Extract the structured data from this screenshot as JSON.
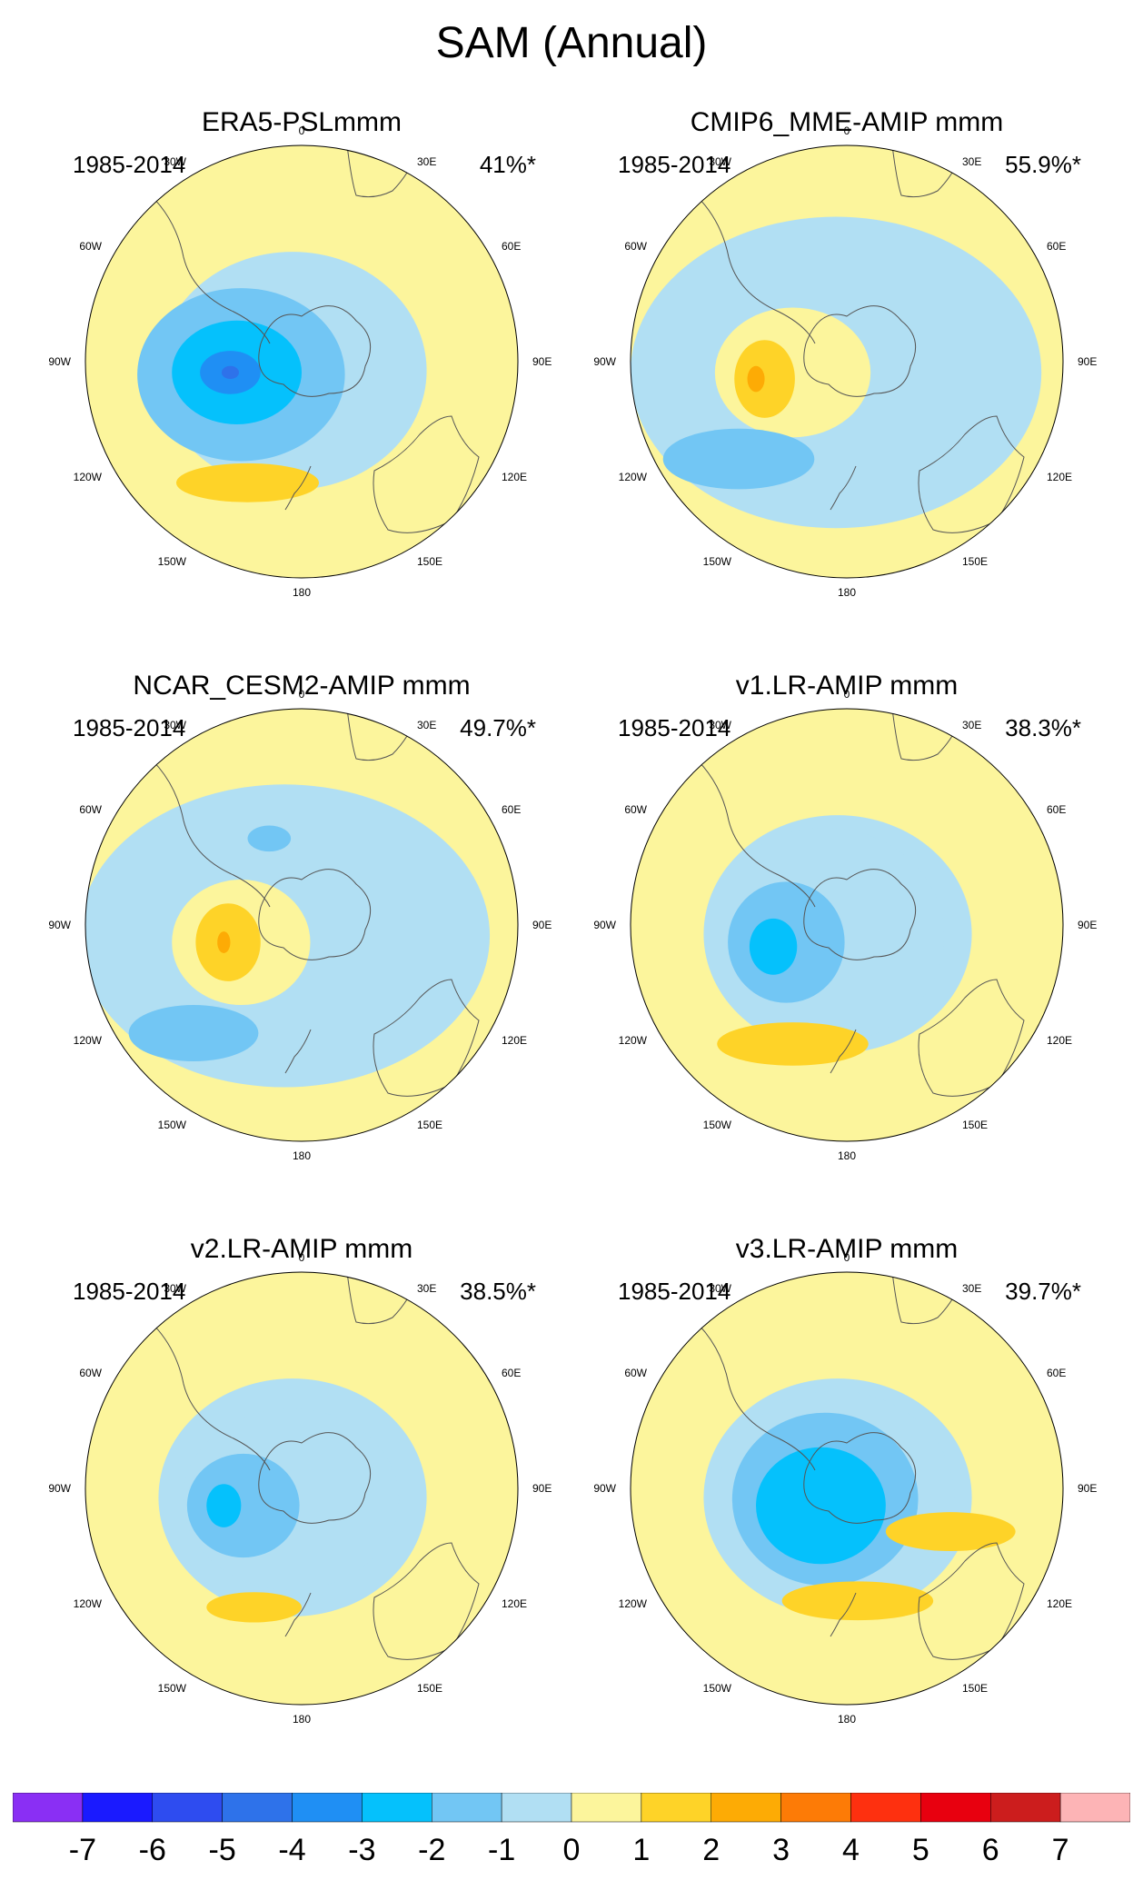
{
  "figure": {
    "title": "SAM (Annual)"
  },
  "chart_data": {
    "type": "contour-map",
    "projection": "south polar stereographic",
    "longitude_labels": [
      "0",
      "30E",
      "60E",
      "90E",
      "120E",
      "150E",
      "180",
      "150W",
      "120W",
      "90W",
      "60W",
      "30W"
    ],
    "panels": [
      {
        "title": "ERA5-PSLmmm",
        "period": "1985-2014",
        "variance_explained": "41%*",
        "features": [
          {
            "level": -2,
            "cx": -0.28,
            "cy": 0.06,
            "rx": 0.48,
            "ry": 0.4
          },
          {
            "level": -3,
            "cx": -0.3,
            "cy": 0.05,
            "rx": 0.3,
            "ry": 0.24
          },
          {
            "level": -4,
            "cx": -0.33,
            "cy": 0.05,
            "rx": 0.14,
            "ry": 0.1
          },
          {
            "level": -5,
            "cx": -0.33,
            "cy": 0.05,
            "rx": 0.04,
            "ry": 0.03
          },
          {
            "level": 2,
            "cx": -0.25,
            "cy": 0.56,
            "rx": 0.33,
            "ry": 0.09
          }
        ]
      },
      {
        "title": "CMIP6_MME-AMIP  mmm",
        "period": "1985-2014",
        "variance_explained": "55.9%*",
        "features": [
          {
            "level": -1,
            "cx": -0.05,
            "cy": 0.05,
            "rx": 0.95,
            "ry": 0.72
          },
          {
            "level": 1,
            "cx": -0.25,
            "cy": 0.05,
            "rx": 0.36,
            "ry": 0.3
          },
          {
            "level": 2,
            "cx": -0.38,
            "cy": 0.08,
            "rx": 0.14,
            "ry": 0.18
          },
          {
            "level": 3,
            "cx": -0.42,
            "cy": 0.08,
            "rx": 0.04,
            "ry": 0.06
          },
          {
            "level": -2,
            "cx": -0.5,
            "cy": 0.45,
            "rx": 0.35,
            "ry": 0.14
          }
        ]
      },
      {
        "title": "NCAR_CESM2-AMIP  mmm",
        "period": "1985-2014",
        "variance_explained": "49.7%*",
        "features": [
          {
            "level": -1,
            "cx": -0.08,
            "cy": 0.05,
            "rx": 0.95,
            "ry": 0.7
          },
          {
            "level": 1,
            "cx": -0.28,
            "cy": 0.08,
            "rx": 0.32,
            "ry": 0.29
          },
          {
            "level": 2,
            "cx": -0.34,
            "cy": 0.08,
            "rx": 0.15,
            "ry": 0.18
          },
          {
            "level": 3,
            "cx": -0.36,
            "cy": 0.08,
            "rx": 0.03,
            "ry": 0.05
          },
          {
            "level": -2,
            "cx": -0.5,
            "cy": 0.5,
            "rx": 0.3,
            "ry": 0.13
          },
          {
            "level": -2,
            "cx": -0.15,
            "cy": -0.4,
            "rx": 0.1,
            "ry": 0.06
          }
        ]
      },
      {
        "title": "v1.LR-AMIP  mmm",
        "period": "1985-2014",
        "variance_explained": "38.3%*",
        "features": [
          {
            "level": -1,
            "cx": -0.1,
            "cy": 0.05,
            "rx": 0.55,
            "ry": 0.5
          },
          {
            "level": -2,
            "cx": -0.28,
            "cy": 0.08,
            "rx": 0.27,
            "ry": 0.28
          },
          {
            "level": -3,
            "cx": -0.34,
            "cy": 0.1,
            "rx": 0.11,
            "ry": 0.13
          },
          {
            "level": 2,
            "cx": -0.25,
            "cy": 0.55,
            "rx": 0.35,
            "ry": 0.1
          }
        ]
      },
      {
        "title": "v2.LR-AMIP  mmm",
        "period": "1985-2014",
        "variance_explained": "38.5%*",
        "features": [
          {
            "level": -1,
            "cx": -0.05,
            "cy": 0.05,
            "rx": 0.5,
            "ry": 0.42
          },
          {
            "level": -2,
            "cx": -0.27,
            "cy": 0.08,
            "rx": 0.26,
            "ry": 0.24
          },
          {
            "level": -3,
            "cx": -0.36,
            "cy": 0.08,
            "rx": 0.08,
            "ry": 0.1
          },
          {
            "level": 2,
            "cx": -0.22,
            "cy": 0.55,
            "rx": 0.22,
            "ry": 0.07
          }
        ]
      },
      {
        "title": "v3.LR-AMIP  mmm",
        "period": "1985-2014",
        "variance_explained": "39.7%*",
        "features": [
          {
            "level": -1,
            "cx": -0.05,
            "cy": 0.05,
            "rx": 0.55,
            "ry": 0.5
          },
          {
            "level": -2,
            "cx": -0.1,
            "cy": 0.05,
            "rx": 0.43,
            "ry": 0.4
          },
          {
            "level": -3,
            "cx": -0.12,
            "cy": 0.08,
            "rx": 0.3,
            "ry": 0.27
          },
          {
            "level": 2,
            "cx": 0.05,
            "cy": 0.52,
            "rx": 0.35,
            "ry": 0.09
          },
          {
            "level": 2,
            "cx": 0.48,
            "cy": 0.2,
            "rx": 0.3,
            "ry": 0.09
          }
        ]
      }
    ],
    "colorbar": {
      "labels": [
        "-7",
        "-6",
        "-5",
        "-4",
        "-3",
        "-2",
        "-1",
        "0",
        "1",
        "2",
        "3",
        "4",
        "5",
        "6",
        "7"
      ],
      "colors": [
        "#8a2ff4",
        "#1a1aff",
        "#2e4cf0",
        "#2e72ea",
        "#1f8ff4",
        "#05c1fc",
        "#72c6f4",
        "#b1dff3",
        "#fcf59c",
        "#fed328",
        "#fdab05",
        "#fd7b06",
        "#fe300f",
        "#e8000f",
        "#cc1d1d",
        "#fdb4b6"
      ]
    }
  }
}
